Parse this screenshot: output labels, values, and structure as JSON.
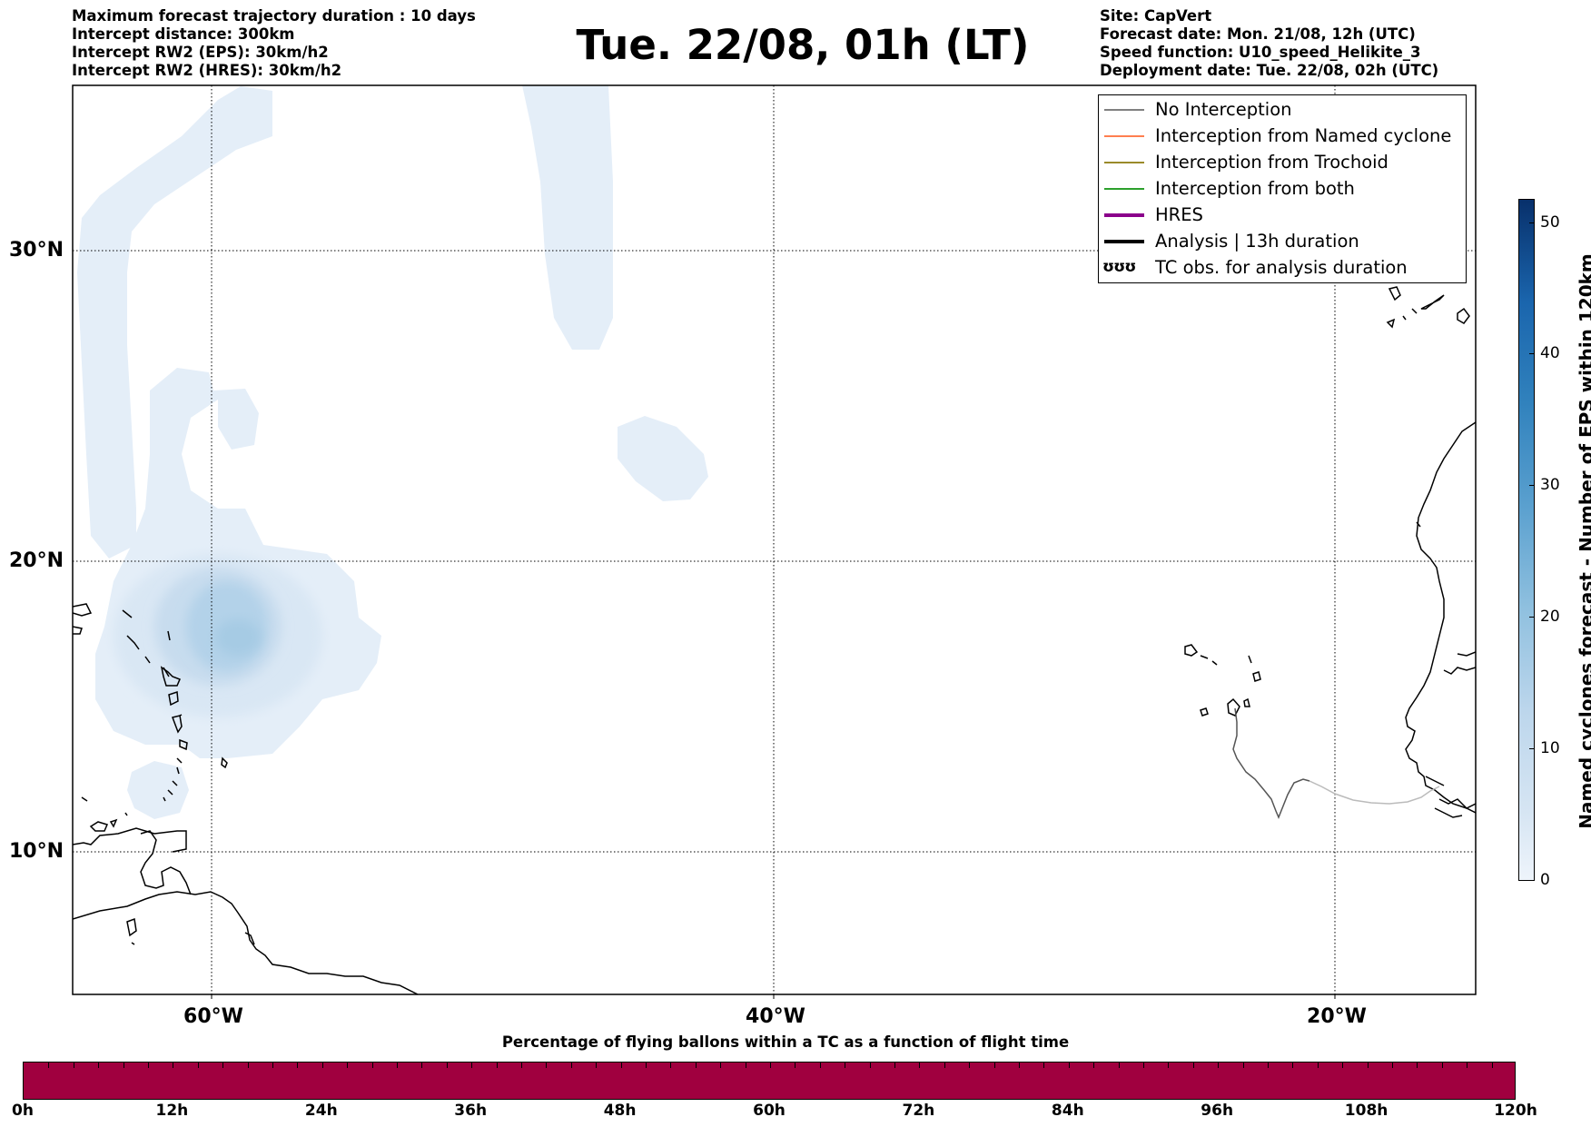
{
  "header": {
    "left_lines": [
      "Maximum forecast trajectory duration : 10 days",
      "Intercept distance: 300km",
      "Intercept RW2 (EPS):  30km/h2",
      "Intercept RW2 (HRES): 30km/h2"
    ],
    "title": "Tue. 22/08, 01h (LT)",
    "right_lines": [
      "Site: CapVert",
      "Forecast date: Mon. 21/08, 12h (UTC)",
      "Speed function: U10_speed_Helikite_3",
      "Deployment date: Tue. 22/08, 02h (UTC)"
    ]
  },
  "map": {
    "lat_labels": [
      "30°N",
      "20°N",
      "10°N"
    ],
    "lon_labels": [
      "60°W",
      "40°W",
      "20°W"
    ]
  },
  "legend": {
    "items": [
      {
        "label": "No Interception",
        "color": "#808080",
        "style": "thin"
      },
      {
        "label": "Interception from Named cyclone",
        "color": "#ff7f50",
        "style": "thin"
      },
      {
        "label": "Interception from Trochoid",
        "color": "#9a8a2a",
        "style": "thin"
      },
      {
        "label": "Interception from both",
        "color": "#2ca02c",
        "style": "thin"
      },
      {
        "label": "HRES",
        "color": "#8b008b",
        "style": "thick"
      },
      {
        "label": "Analysis | 13h duration",
        "color": "#000000",
        "style": "thick"
      },
      {
        "label": "TC obs. for analysis duration",
        "color": "#000000",
        "style": "symbol",
        "symbol": "ʊʊʊ"
      }
    ]
  },
  "colorbar": {
    "label": "Named cyclones forecast - Number of EPS within 120km",
    "ticks": [
      "0",
      "10",
      "20",
      "30",
      "40",
      "50"
    ]
  },
  "timeline": {
    "title": "Percentage of flying ballons within a TC as a function of flight time",
    "ticks": [
      "0h",
      "12h",
      "24h",
      "36h",
      "48h",
      "60h",
      "72h",
      "84h",
      "96h",
      "108h",
      "120h"
    ],
    "bar_color": "#a0003f"
  }
}
